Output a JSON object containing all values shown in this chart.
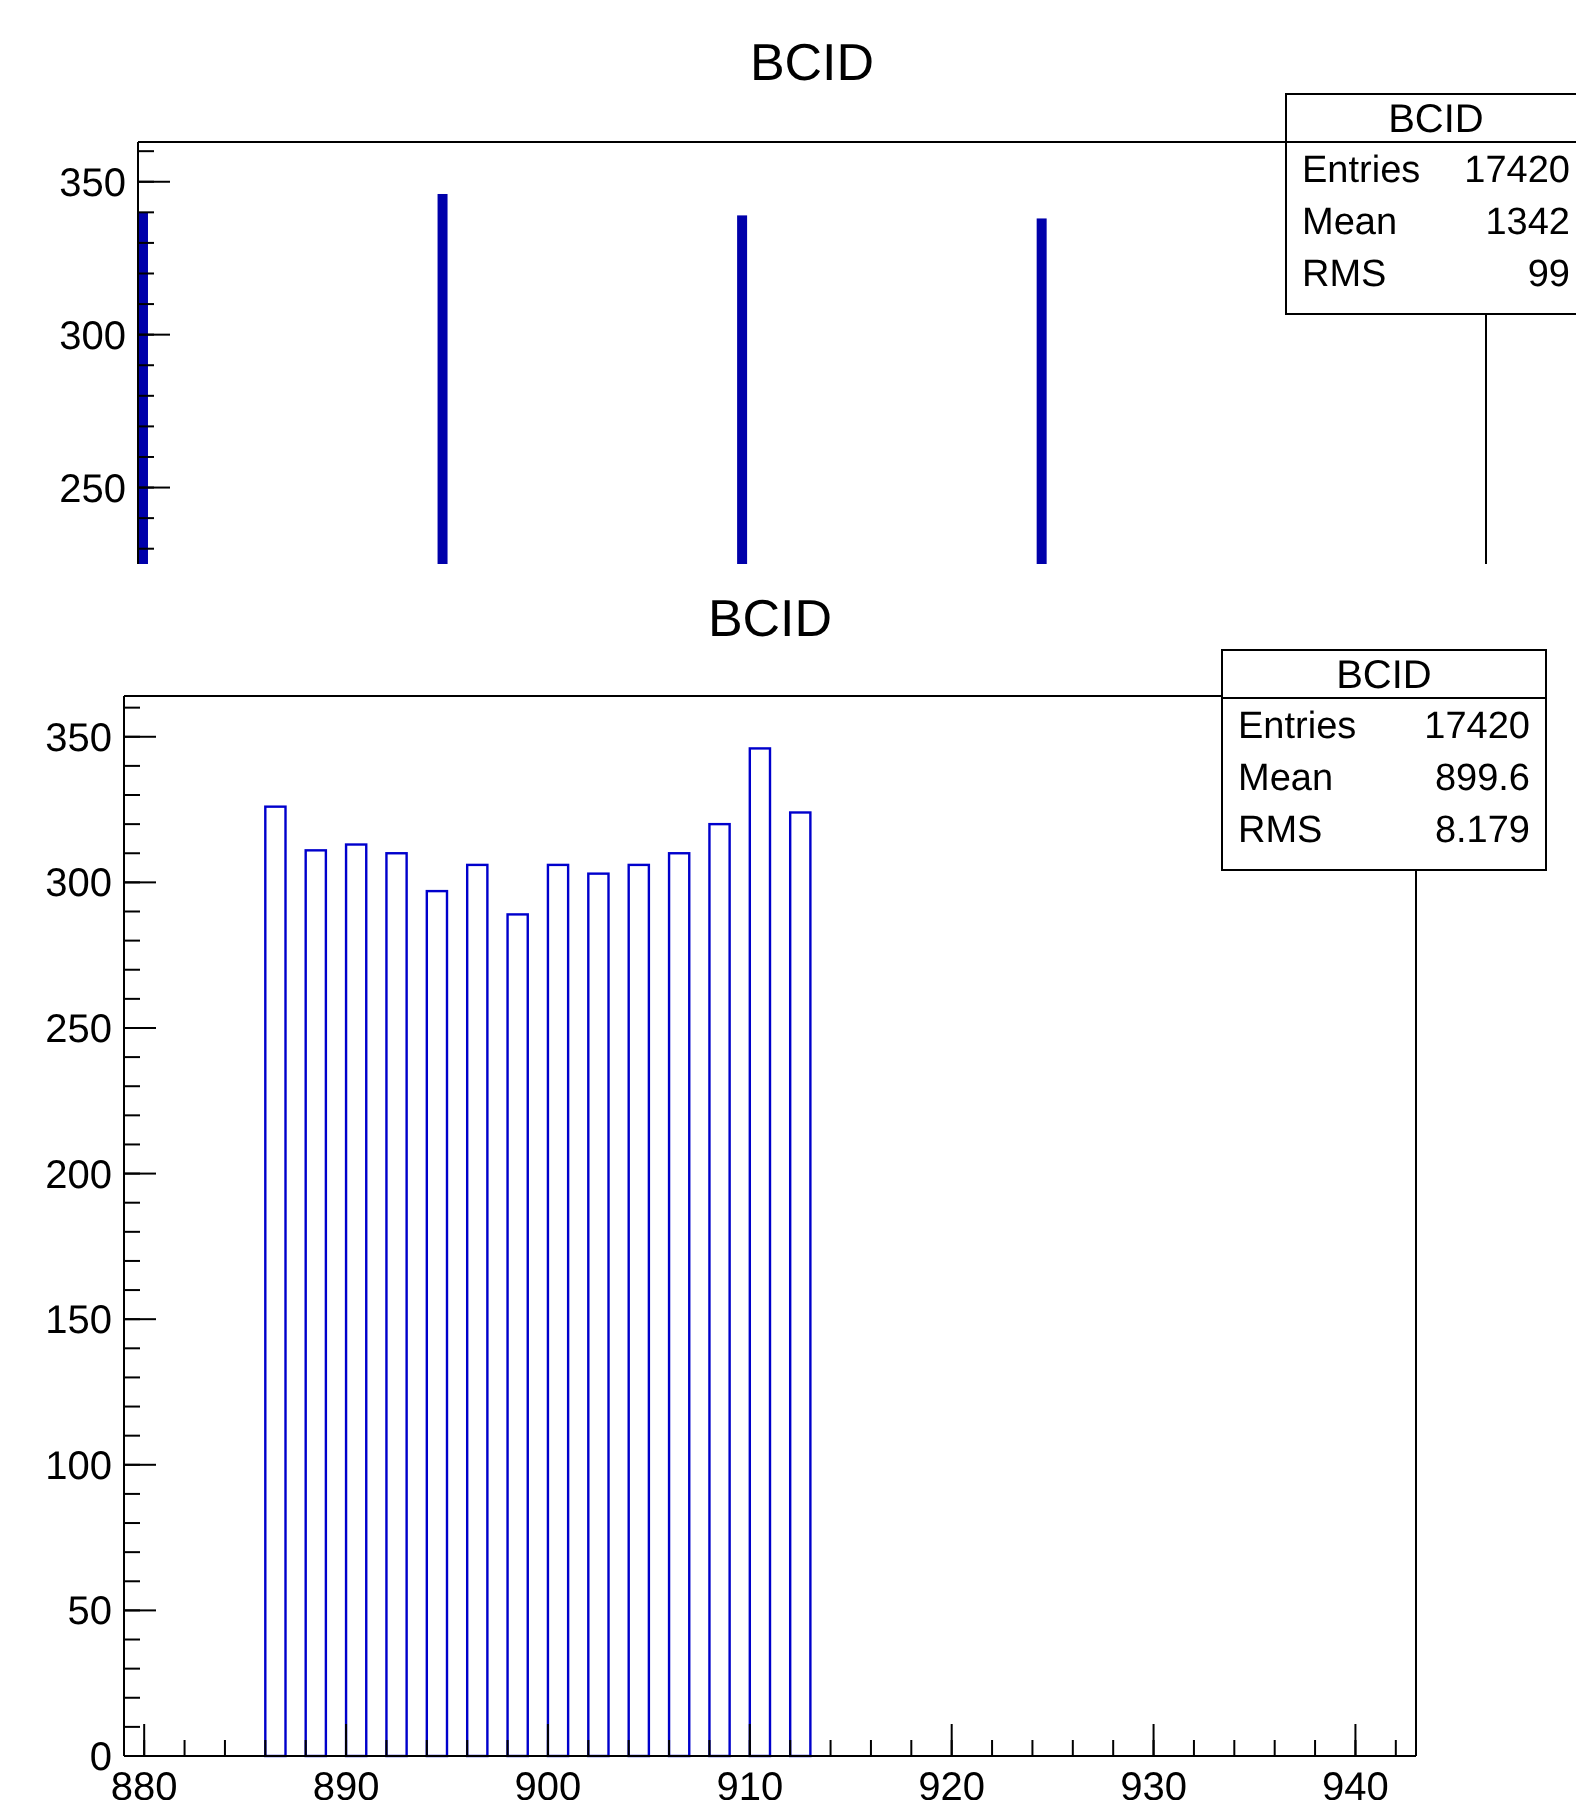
{
  "chart_data": [
    {
      "type": "bar",
      "title": "BCID",
      "categories": [
        null,
        null,
        null,
        null,
        null,
        null,
        null,
        null,
        null,
        null,
        null,
        null,
        null,
        null,
        null,
        null,
        null,
        null,
        null,
        null,
        null,
        null,
        null,
        null,
        null,
        null,
        null,
        null,
        null,
        null,
        null,
        null,
        null,
        null,
        null,
        null,
        null,
        null,
        null,
        null,
        null,
        null,
        null,
        null,
        null,
        null,
        null,
        null,
        null,
        null,
        null,
        null,
        null,
        null,
        null,
        null,
        null,
        null,
        null,
        null,
        null,
        null,
        null,
        null,
        null,
        null,
        null,
        null,
        null,
        null,
        null,
        null,
        null,
        null,
        null,
        null,
        null,
        null,
        null,
        null,
        null,
        null,
        null,
        null,
        null,
        null,
        null,
        null,
        null,
        null,
        null,
        null,
        null,
        null,
        null,
        null,
        null,
        null,
        null,
        null,
        null,
        null,
        null,
        null,
        null,
        null,
        null,
        null,
        null,
        null,
        null,
        null,
        null,
        null,
        null,
        null,
        null,
        null,
        null,
        null,
        null,
        null,
        null,
        null,
        null,
        null,
        null,
        null,
        null,
        null,
        null,
        null,
        null,
        null,
        null
      ],
      "values": [
        340,
        null,
        null,
        null,
        null,
        null,
        null,
        null,
        null,
        null,
        null,
        null,
        null,
        null,
        null,
        null,
        null,
        null,
        null,
        null,
        null,
        null,
        null,
        null,
        null,
        null,
        null,
        null,
        null,
        null,
        346,
        null,
        null,
        null,
        null,
        null,
        null,
        null,
        null,
        null,
        null,
        null,
        null,
        null,
        null,
        null,
        null,
        null,
        null,
        null,
        null,
        null,
        null,
        null,
        null,
        null,
        null,
        null,
        null,
        null,
        339,
        null,
        null,
        null,
        null,
        null,
        null,
        null,
        null,
        null,
        null,
        null,
        null,
        null,
        null,
        null,
        null,
        null,
        null,
        null,
        null,
        null,
        null,
        null,
        null,
        null,
        null,
        null,
        null,
        null,
        338,
        null,
        null,
        null,
        null,
        null,
        null,
        null,
        null,
        null,
        null,
        null,
        null,
        null,
        null,
        null,
        null,
        null,
        null,
        null,
        null,
        null,
        null,
        null,
        null,
        null,
        null,
        null,
        null,
        null,
        null,
        null,
        null,
        null,
        null,
        null,
        null,
        null,
        null,
        null,
        null,
        null,
        null,
        null,
        null
      ],
      "color": "#0000aa",
      "ylim": [
        225,
        363
      ],
      "yticks": [
        250,
        300,
        350
      ],
      "tick_labels": "y",
      "annotations": [
        "BCID",
        "Entries 17420",
        "Mean 1342",
        "RMS 99"
      ]
    },
    {
      "type": "histogram",
      "title": "BCID",
      "bins": [
        886,
        887,
        888,
        889,
        890,
        891,
        892,
        893,
        894,
        895,
        896,
        897,
        898,
        899,
        900,
        901,
        902,
        903,
        904,
        905,
        906,
        907,
        908,
        909,
        910,
        911,
        912,
        913
      ],
      "values": [
        326,
        0,
        311,
        0,
        313,
        0,
        310,
        0,
        297,
        0,
        306,
        0,
        289,
        0,
        306,
        0,
        303,
        0,
        306,
        0,
        310,
        0,
        320,
        0,
        346,
        0,
        324
      ],
      "color": "#0000cc",
      "xlim": [
        879,
        943
      ],
      "xticks": [
        880,
        890,
        900,
        910,
        920,
        930,
        940
      ],
      "ylim": [
        0,
        364
      ],
      "yticks": [
        0,
        50,
        100,
        150,
        200,
        250,
        300,
        350
      ],
      "annotations": [
        "BCID",
        "Entries 17420",
        "Mean 899.6",
        "RMS 8.179"
      ]
    }
  ]
}
